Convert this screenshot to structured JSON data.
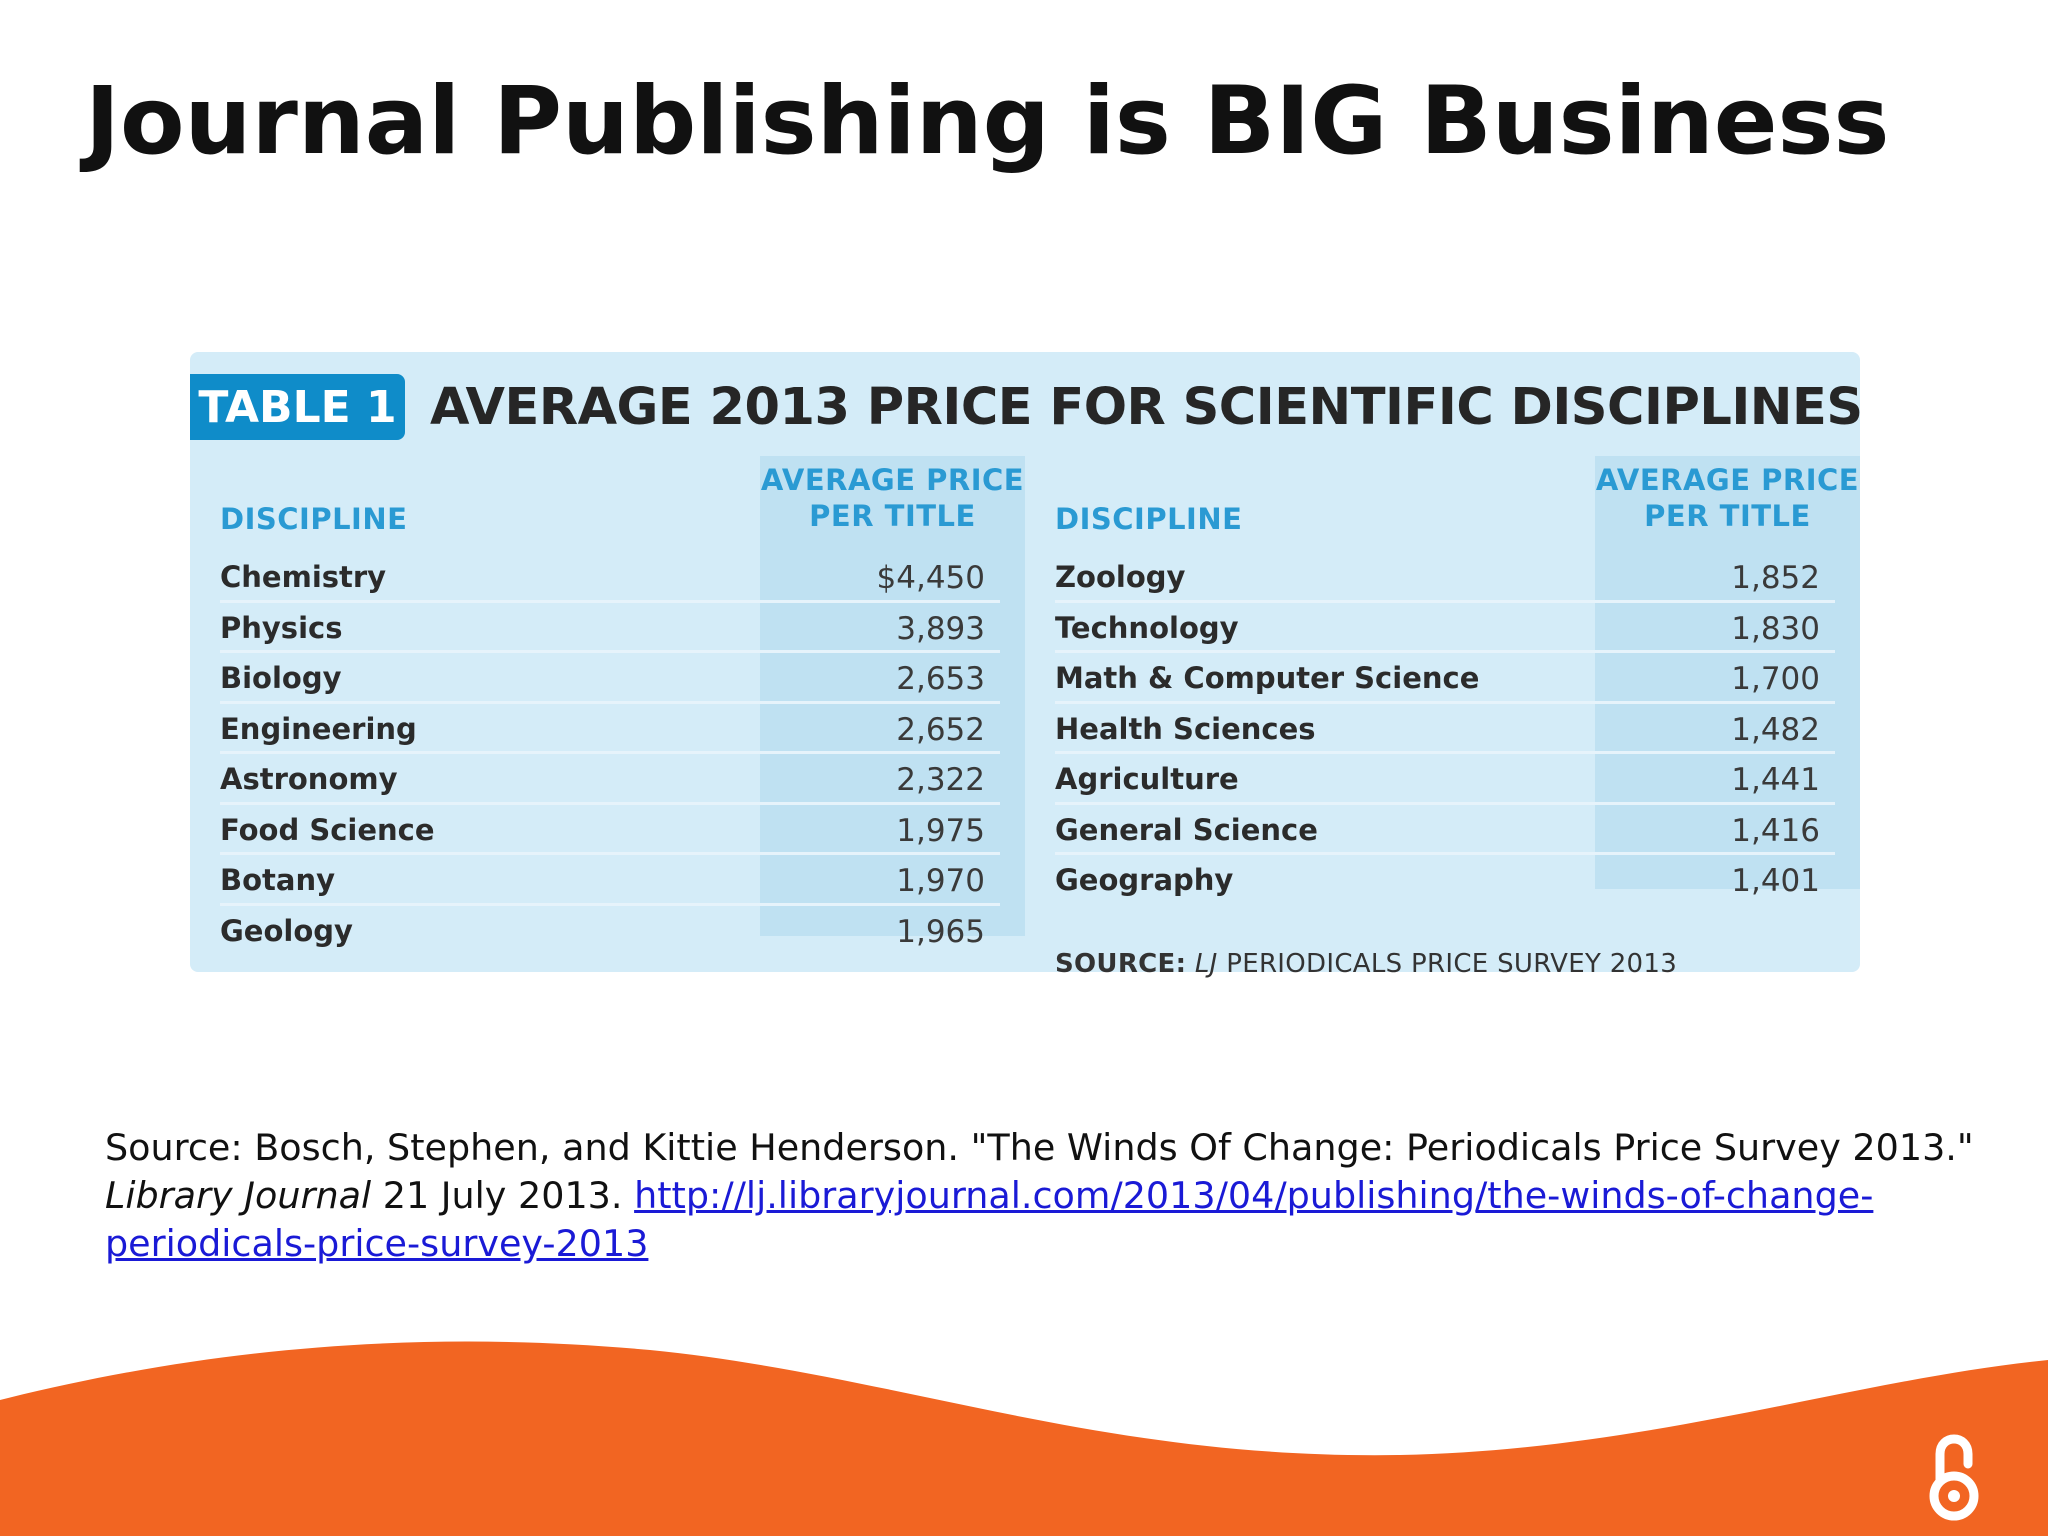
{
  "slide": {
    "title": "Journal Publishing is BIG Business"
  },
  "table": {
    "tag": "TABLE 1",
    "heading": "AVERAGE 2013 PRICE FOR SCIENTIFIC DISCIPLINES",
    "columns": {
      "discipline": "DISCIPLINE",
      "price_line1": "AVERAGE PRICE",
      "price_line2": "PER TITLE"
    },
    "left_rows": [
      {
        "discipline": "Chemistry",
        "price": "$4,450"
      },
      {
        "discipline": "Physics",
        "price": "3,893"
      },
      {
        "discipline": "Biology",
        "price": "2,653"
      },
      {
        "discipline": "Engineering",
        "price": "2,652"
      },
      {
        "discipline": "Astronomy",
        "price": "2,322"
      },
      {
        "discipline": "Food Science",
        "price": "1,975"
      },
      {
        "discipline": "Botany",
        "price": "1,970"
      },
      {
        "discipline": "Geology",
        "price": "1,965"
      }
    ],
    "right_rows": [
      {
        "discipline": "Zoology",
        "price": "1,852"
      },
      {
        "discipline": "Technology",
        "price": "1,830"
      },
      {
        "discipline": "Math & Computer Science",
        "price": "1,700"
      },
      {
        "discipline": "Health Sciences",
        "price": "1,482"
      },
      {
        "discipline": "Agriculture",
        "price": "1,441"
      },
      {
        "discipline": "General Science",
        "price": "1,416"
      },
      {
        "discipline": "Geography",
        "price": "1,401"
      }
    ],
    "source": {
      "label": "SOURCE:",
      "italic": "LJ",
      "rest": "PERIODICALS PRICE SURVEY 2013"
    }
  },
  "citation": {
    "part1": "Source: Bosch, Stephen, and Kittie Henderson. \"The Winds Of Change: Periodicals Price Survey 2013.\"",
    "journal": "Library Journal",
    "date": "21 July 2013.",
    "link_text": "http://lj.libraryjournal.com/2013/04/publishing/the-winds-of-change-periodicals-price-survey-2013"
  },
  "branding": {
    "logo_icon": "open-access-icon",
    "accent_color": "#f26522",
    "table_accent": "#0f8cc9"
  }
}
